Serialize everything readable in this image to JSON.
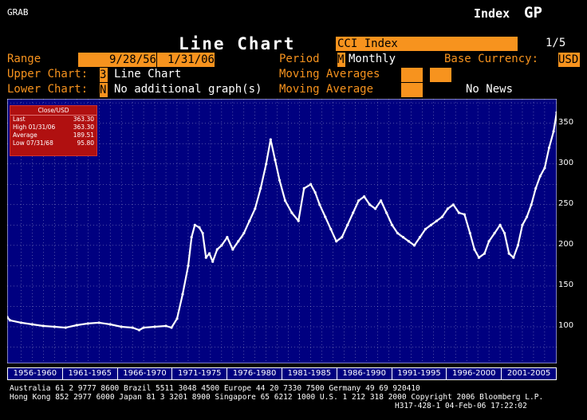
{
  "header": {
    "grab": "GRAB",
    "index_label": "Index",
    "gp_label": "GP",
    "title": "Line Chart",
    "ticker": "CCI Index",
    "page": "1/5"
  },
  "controls": {
    "range_label": "Range",
    "range_start": "9/28/56",
    "range_dash": "-",
    "range_end": "1/31/06",
    "period_label": "Period",
    "period_code": "M",
    "period_value": "Monthly",
    "base_currency_label": "Base Currency:",
    "base_currency_value": "USD",
    "upper_chart_label": "Upper Chart:",
    "upper_chart_code": "3",
    "upper_chart_value": "Line Chart",
    "moving_averages_label": "Moving Averages",
    "lower_chart_label": "Lower Chart:",
    "lower_chart_code": "N",
    "lower_chart_value": "No additional graph(s)",
    "moving_average_label": "Moving Average",
    "no_news": "No News"
  },
  "stats_box": {
    "title": "Close/USD",
    "rows": [
      {
        "label": "Last",
        "value": "363.30"
      },
      {
        "label": "High  01/31/06",
        "value": "363.30"
      },
      {
        "label": "Average",
        "value": "189.51"
      },
      {
        "label": "Low   07/31/68",
        "value": "95.80"
      }
    ]
  },
  "footer": {
    "line1": "Australia 61 2 9777 8600        Brazil 5511 3048 4500          Europe 44 20 7330 7500          Germany 49 69 920410",
    "line2": "Hong Kong 852 2977 6000 Japan 81 3 3201 8900 Singapore 65 6212 1000 U.S. 1 212 318 2000 Copyright 2006 Bloomberg L.P.",
    "line3": "H317-428-1 04-Feb-06 17:22:02"
  },
  "colors": {
    "background": "#000000",
    "plot_bg": "#000080",
    "orange": "#f7931e",
    "line": "#ffffff",
    "stats_bg": "#b01010"
  },
  "chart_data": {
    "type": "line",
    "title": "",
    "xlabel": "",
    "ylabel": "",
    "ylim": [
      55,
      380
    ],
    "xlim": [
      1956.75,
      2006.08
    ],
    "y_ticks": [
      100,
      150,
      200,
      250,
      300,
      350
    ],
    "period_labels": [
      "1956-1960",
      "1961-1965",
      "1966-1970",
      "1971-1975",
      "1976-1980",
      "1981-1985",
      "1986-1990",
      "1991-1995",
      "1996-2000",
      "2001-2005"
    ],
    "grid": true,
    "series": [
      {
        "name": "",
        "x": [
          1956.75,
          1957.0,
          1958.0,
          1959.0,
          1960.0,
          1961.0,
          1962.0,
          1963.0,
          1964.0,
          1965.0,
          1966.0,
          1967.0,
          1968.0,
          1968.6,
          1969.0,
          1970.0,
          1971.0,
          1971.5,
          1972.0,
          1972.5,
          1973.0,
          1973.3,
          1973.6,
          1974.0,
          1974.3,
          1974.6,
          1974.9,
          1975.2,
          1975.6,
          1976.0,
          1976.5,
          1977.0,
          1977.5,
          1978.0,
          1978.5,
          1979.0,
          1979.5,
          1980.0,
          1980.4,
          1980.8,
          1981.2,
          1981.7,
          1982.3,
          1982.9,
          1983.4,
          1984.0,
          1984.4,
          1984.8,
          1985.3,
          1985.8,
          1986.3,
          1986.8,
          1987.3,
          1987.8,
          1988.3,
          1988.8,
          1989.3,
          1989.8,
          1990.3,
          1990.8,
          1991.3,
          1991.8,
          1992.3,
          1992.8,
          1993.3,
          1993.8,
          1994.3,
          1994.8,
          1995.3,
          1995.8,
          1996.3,
          1996.8,
          1997.3,
          1997.8,
          1998.3,
          1998.7,
          1999.1,
          1999.6,
          2000.0,
          2000.5,
          2001.0,
          2001.4,
          2001.8,
          2002.2,
          2002.6,
          2003.0,
          2003.4,
          2003.8,
          2004.2,
          2004.6,
          2005.0,
          2005.4,
          2005.8,
          2006.08
        ],
        "values": [
          112,
          108,
          105,
          103,
          101,
          100,
          99,
          102,
          104,
          105,
          103,
          100,
          99,
          96,
          99,
          100,
          101,
          99,
          110,
          140,
          175,
          210,
          225,
          222,
          215,
          185,
          190,
          180,
          195,
          200,
          210,
          195,
          205,
          215,
          230,
          245,
          270,
          300,
          330,
          305,
          280,
          255,
          240,
          230,
          270,
          275,
          265,
          250,
          235,
          220,
          205,
          210,
          225,
          240,
          255,
          260,
          250,
          245,
          255,
          240,
          225,
          215,
          210,
          205,
          200,
          210,
          220,
          225,
          230,
          235,
          245,
          250,
          240,
          238,
          215,
          195,
          185,
          190,
          205,
          215,
          225,
          215,
          190,
          185,
          200,
          225,
          235,
          250,
          270,
          285,
          295,
          320,
          340,
          363.3
        ]
      }
    ]
  }
}
